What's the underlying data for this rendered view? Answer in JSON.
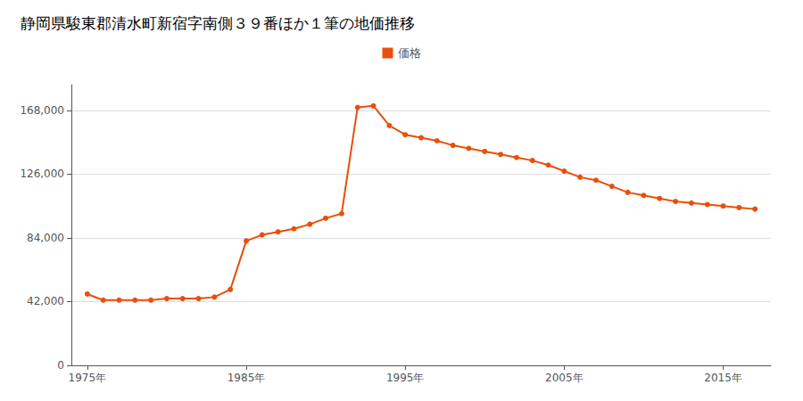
{
  "chart_data": {
    "type": "line",
    "title": "静岡県駿東郡清水町新宿字南側３９番ほか１筆の地価推移",
    "x": [
      1975,
      1976,
      1977,
      1978,
      1979,
      1980,
      1981,
      1982,
      1983,
      1984,
      1985,
      1986,
      1987,
      1988,
      1989,
      1990,
      1991,
      1992,
      1993,
      1994,
      1995,
      1996,
      1997,
      1998,
      1999,
      2000,
      2001,
      2002,
      2003,
      2004,
      2005,
      2006,
      2007,
      2008,
      2009,
      2010,
      2011,
      2012,
      2013,
      2014,
      2015,
      2016,
      2017
    ],
    "series": [
      {
        "name": "価格",
        "color": "#E8500A",
        "marker": "circle",
        "values": [
          47000,
          43000,
          43000,
          43000,
          43000,
          44000,
          44000,
          44000,
          45000,
          50000,
          82000,
          86000,
          88000,
          90000,
          93000,
          97000,
          100000,
          170000,
          171000,
          158000,
          152000,
          150000,
          148000,
          145000,
          143000,
          141000,
          139000,
          137000,
          135000,
          132000,
          128000,
          124000,
          122000,
          118000,
          114000,
          112000,
          110000,
          108000,
          107000,
          106000,
          105000,
          104000,
          103000
        ]
      }
    ],
    "xlim": [
      1974,
      2018
    ],
    "xticks": [
      {
        "value": 1975,
        "label": "1975年"
      },
      {
        "value": 1985,
        "label": "1985年"
      },
      {
        "value": 1995,
        "label": "1995年"
      },
      {
        "value": 2005,
        "label": "2005年"
      },
      {
        "value": 2015,
        "label": "2015年"
      }
    ],
    "ylim": [
      0,
      185000
    ],
    "yticks": [
      0,
      {
        "value": 42000,
        "label": "42,000"
      },
      {
        "value": 84000,
        "label": "84,000"
      },
      {
        "value": 126000,
        "label": "126,000"
      },
      {
        "value": 168000,
        "label": "168,000"
      }
    ],
    "grid": "y",
    "legend": "top"
  }
}
